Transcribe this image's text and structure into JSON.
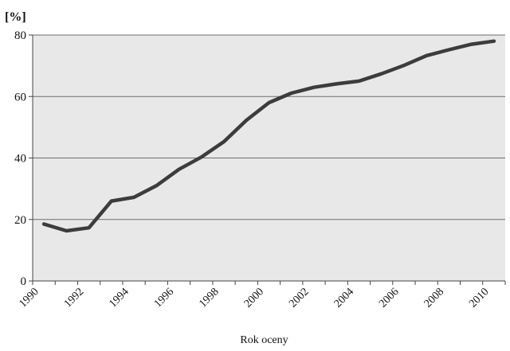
{
  "chart_data": {
    "type": "line",
    "ylabel": "[%]",
    "xlabel": "Rok oceny",
    "xlim": [
      1990,
      2011
    ],
    "ylim": [
      0,
      80
    ],
    "y_ticks": [
      0,
      20,
      40,
      60,
      80
    ],
    "x_ticks": [
      1990,
      1992,
      1994,
      1996,
      1998,
      2000,
      2002,
      2004,
      2006,
      2008,
      2010
    ],
    "x_tick_labels": [
      "1990",
      "1992",
      "1994",
      "1996",
      "1998",
      "2000",
      "2002",
      "2004",
      "2006",
      "2008",
      "2010"
    ],
    "y_tick_labels": [
      "0",
      "20",
      "40",
      "60",
      "80"
    ],
    "grid": "horizontal",
    "legend": "none",
    "plot_background": "#e8e8e8",
    "line_color": "#3c3c3c",
    "series": [
      {
        "x": [
          1990.5,
          1991.5,
          1992.5,
          1993.5,
          1994.5,
          1995.5,
          1996.5,
          1997.5,
          1998.5,
          1999.5,
          2000.5,
          2001.5,
          2002.5,
          2003.5,
          2004.5,
          2005.5,
          2006.5,
          2007.5,
          2008.5,
          2009.5,
          2010.5
        ],
        "values": [
          18.5,
          16.3,
          17.3,
          26,
          27.2,
          31,
          36.3,
          40.3,
          45.3,
          52.3,
          58,
          61.1,
          63,
          64.1,
          65,
          67.4,
          70.1,
          73.3,
          75.2,
          77,
          78
        ]
      }
    ]
  }
}
